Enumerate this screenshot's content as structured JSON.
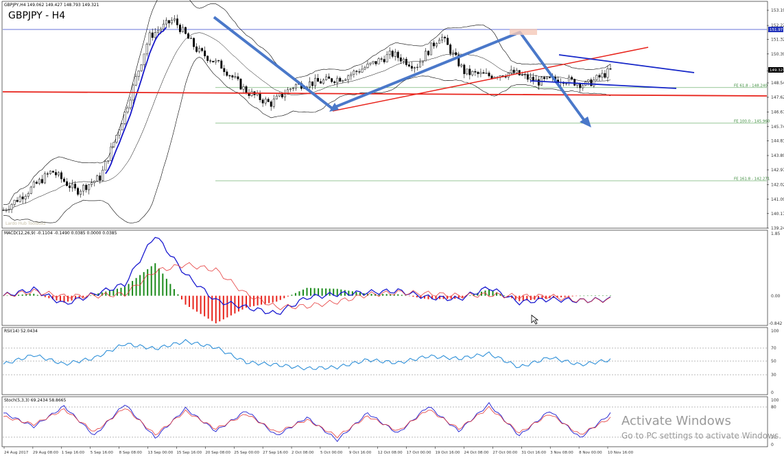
{
  "header": {
    "main_info": "GBPJPY,H4  149.062 149.427 148.793 149.321",
    "symbol_label": "GBPJPY - H4",
    "faint_labels": "Lardo Hub   Toolbox2"
  },
  "watermark": {
    "line1": "Activate Windows",
    "line2": "Go to PC settings to activate Windows."
  },
  "price_axis": {
    "ticks": [
      "153.19",
      "152.22",
      "151.32",
      "150.39",
      "149.32",
      "148.54",
      "147.62",
      "146.67",
      "145.74",
      "144.83",
      "143.89",
      "142.97",
      "142.02",
      "141.09",
      "140.17",
      "139.24"
    ],
    "current_price": "149.32",
    "blue_level_label": "151.97"
  },
  "fib_levels": [
    {
      "label": "FE 61.8 - 148.240",
      "price": 148.24
    },
    {
      "label": "FE 100.0 - 145.960",
      "price": 145.96
    },
    {
      "label": "FE 161.8 - 142.271",
      "price": 142.271
    }
  ],
  "colors": {
    "candle": "#000000",
    "bollinger": "#000000",
    "ma_blue": "#1515c8",
    "support_red": "#e8231b",
    "trend_blue": "#4a78c9",
    "channel_blue": "#1526c8",
    "fib_green": "#5aa55a",
    "macd_line": "#1a1ad0",
    "macd_signal": "#e53a3a",
    "hist_pos": "#1a8a1a",
    "hist_neg": "#e8231b",
    "rsi_line": "#2d8fd8",
    "stoch_main": "#1a1ad0",
    "stoch_signal": "#e53a3a"
  },
  "macd": {
    "label": "MACD(12,26,9) -0.1104 -0.1490 0.0385 0.0000 0.0385",
    "ticks": [
      "1.85",
      "0.00",
      "-0.842"
    ]
  },
  "rsi": {
    "label": "RSI(14) 52.0434",
    "ticks": [
      "100",
      "70",
      "50",
      "30",
      "0"
    ]
  },
  "stoch": {
    "label": "Stoch(5,3,3) 69.2434 58.8665",
    "ticks": [
      "100",
      "80",
      "20",
      "0"
    ]
  },
  "dates": [
    "24 Aug 2017",
    "29 Aug 08:00",
    "1 Sep 16:00",
    "5 Sep 16:00",
    "8 Sep 08:00",
    "13 Sep 00:00",
    "15 Sep 16:00",
    "20 Sep 08:00",
    "25 Sep 00:00",
    "27 Sep 16:00",
    "2 Oct 08:00",
    "5 Oct 00:00",
    "9 Oct 16:00",
    "12 Oct 08:00",
    "17 Oct 00:00",
    "19 Oct 16:00",
    "24 Oct 08:00",
    "27 Oct 00:00",
    "31 Oct 16:00",
    "3 Nov 08:00",
    "8 Nov 00:00",
    "10 Nov 16:00"
  ],
  "chart_data": [
    {
      "type": "line",
      "title": "GBPJPY - H4",
      "description_values": "approximate close path (time index 0-100 -> price)",
      "x": [
        0,
        4,
        8,
        12,
        16,
        20,
        24,
        28,
        32,
        36,
        40,
        44,
        48,
        52,
        56,
        60,
        64,
        68,
        72,
        76,
        80,
        84,
        88,
        92,
        96,
        100
      ],
      "y": [
        140.4,
        141.6,
        142.9,
        141.6,
        142.5,
        146.6,
        151.5,
        152.6,
        150.6,
        149.6,
        148.0,
        147.2,
        148.4,
        148.6,
        148.9,
        149.6,
        150.4,
        149.6,
        151.6,
        149.2,
        149.0,
        149.2,
        148.6,
        148.8,
        148.4,
        149.32
      ],
      "price_range": [
        139.24,
        153.19
      ],
      "annotations": [
        "FE 61.8 - 148.240",
        "FE 100.0 - 145.960",
        "FE 161.8 - 142.271"
      ]
    },
    {
      "type": "line",
      "title": "MACD(12,26,9) -0.1104 -0.1490 0.0385 0.0000 0.0385",
      "ylim": [
        -0.842,
        1.85
      ],
      "series": [
        {
          "x": [
            0,
            5,
            10,
            15,
            20,
            25,
            30,
            35,
            40,
            45,
            50,
            55,
            60,
            65,
            70,
            75,
            80,
            85,
            90,
            95,
            100
          ],
          "values": [
            0,
            0.2,
            -0.25,
            0.05,
            0.35,
            1.85,
            0.65,
            -0.15,
            -0.35,
            -0.55,
            -0.05,
            0.05,
            0.1,
            0.15,
            -0.05,
            -0.1,
            0.25,
            -0.2,
            -0.1,
            -0.15,
            -0.11
          ]
        }
      ]
    },
    {
      "type": "line",
      "title": "RSI(14) 52.0434",
      "ylim": [
        0,
        100
      ],
      "series": [
        {
          "x": [
            0,
            5,
            10,
            15,
            20,
            25,
            30,
            35,
            40,
            45,
            50,
            55,
            60,
            65,
            70,
            75,
            80,
            85,
            90,
            95,
            100
          ],
          "values": [
            45,
            60,
            45,
            55,
            78,
            70,
            82,
            72,
            48,
            44,
            38,
            40,
            52,
            47,
            58,
            54,
            62,
            40,
            56,
            44,
            52
          ]
        }
      ]
    },
    {
      "type": "line",
      "title": "Stoch(5,3,3) 69.2434 58.8665",
      "ylim": [
        0,
        100
      ],
      "series": [
        {
          "name": "main",
          "x": [
            0,
            5,
            10,
            15,
            20,
            25,
            30,
            35,
            40,
            45,
            50,
            55,
            60,
            65,
            70,
            75,
            80,
            85,
            90,
            95,
            100
          ],
          "values": [
            70,
            40,
            85,
            20,
            90,
            15,
            80,
            30,
            75,
            20,
            60,
            10,
            70,
            25,
            85,
            30,
            90,
            20,
            75,
            15,
            69
          ]
        },
        {
          "name": "signal",
          "x": [
            0,
            5,
            10,
            15,
            20,
            25,
            30,
            35,
            40,
            45,
            50,
            55,
            60,
            65,
            70,
            75,
            80,
            85,
            90,
            95,
            100
          ],
          "values": [
            62,
            45,
            78,
            28,
            82,
            22,
            74,
            35,
            68,
            27,
            55,
            18,
            63,
            30,
            78,
            35,
            82,
            26,
            68,
            22,
            59
          ]
        }
      ]
    }
  ]
}
